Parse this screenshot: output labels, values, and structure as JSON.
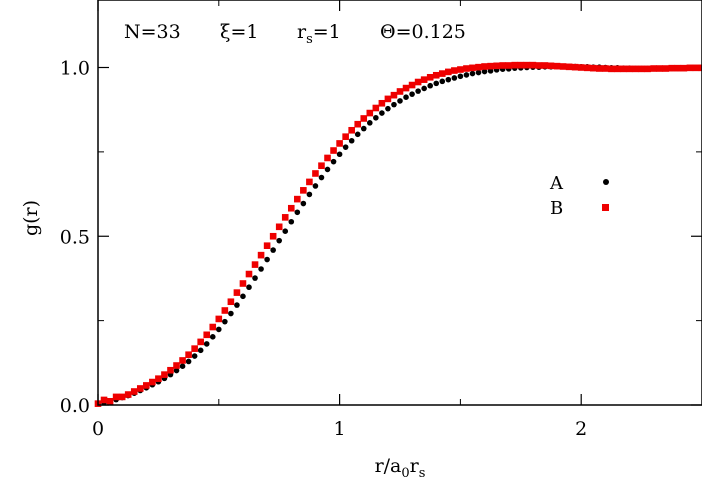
{
  "chart_data": {
    "type": "scatter",
    "annotation": {
      "n": "N=33",
      "xi": "ξ=1",
      "rs_main": "r",
      "rs_sub": "s",
      "rs_tail": "=1",
      "theta": "Θ=0.125"
    },
    "xlabel": {
      "main": "r/a",
      "sub1": "0",
      "mid": "r",
      "sub2": "s"
    },
    "ylabel": "g(r)",
    "xlim": [
      0,
      2.5
    ],
    "ylim": [
      0,
      1.2
    ],
    "xticks": [
      0,
      1,
      2
    ],
    "xtick_labels": [
      "0",
      "1",
      "2"
    ],
    "yticks": [
      0.0,
      0.5,
      1.0
    ],
    "ytick_labels": [
      "0.0",
      "0.5",
      "1.0"
    ],
    "legend_position": "right-middle",
    "series": [
      {
        "name": "A",
        "color": "#000000",
        "marker": "circle",
        "x": [
          0.0,
          0.025,
          0.05,
          0.075,
          0.1,
          0.125,
          0.15,
          0.175,
          0.2,
          0.225,
          0.25,
          0.275,
          0.3,
          0.325,
          0.35,
          0.375,
          0.4,
          0.425,
          0.45,
          0.475,
          0.5,
          0.525,
          0.55,
          0.575,
          0.6,
          0.625,
          0.65,
          0.675,
          0.7,
          0.725,
          0.75,
          0.775,
          0.8,
          0.825,
          0.85,
          0.875,
          0.9,
          0.925,
          0.95,
          0.975,
          1.0,
          1.025,
          1.05,
          1.075,
          1.1,
          1.125,
          1.15,
          1.175,
          1.2,
          1.225,
          1.25,
          1.275,
          1.3,
          1.325,
          1.35,
          1.375,
          1.4,
          1.425,
          1.45,
          1.475,
          1.5,
          1.525,
          1.55,
          1.575,
          1.6,
          1.625,
          1.65,
          1.675,
          1.7,
          1.725,
          1.75,
          1.775,
          1.8,
          1.825,
          1.85,
          1.875,
          1.9,
          1.925,
          1.95,
          1.975,
          2.0,
          2.025,
          2.05,
          2.075,
          2.1,
          2.125,
          2.15,
          2.175,
          2.2,
          2.225,
          2.25,
          2.275,
          2.3,
          2.325,
          2.35,
          2.375,
          2.4,
          2.425,
          2.45,
          2.475,
          2.5
        ],
        "y": [
          0.004,
          0.007,
          0.011,
          0.016,
          0.022,
          0.028,
          0.035,
          0.043,
          0.051,
          0.06,
          0.069,
          0.079,
          0.09,
          0.102,
          0.115,
          0.129,
          0.145,
          0.162,
          0.181,
          0.202,
          0.224,
          0.247,
          0.271,
          0.296,
          0.322,
          0.349,
          0.376,
          0.403,
          0.431,
          0.459,
          0.487,
          0.515,
          0.543,
          0.571,
          0.597,
          0.624,
          0.649,
          0.674,
          0.698,
          0.721,
          0.743,
          0.764,
          0.783,
          0.802,
          0.819,
          0.836,
          0.851,
          0.865,
          0.878,
          0.89,
          0.901,
          0.912,
          0.921,
          0.93,
          0.938,
          0.946,
          0.953,
          0.959,
          0.964,
          0.969,
          0.974,
          0.978,
          0.982,
          0.985,
          0.988,
          0.99,
          0.993,
          0.995,
          0.996,
          0.998,
          0.999,
          1.0,
          1.001,
          1.001,
          1.002,
          1.002,
          1.003,
          1.003,
          1.003,
          1.003,
          1.002,
          1.002,
          1.001,
          1.001,
          1.0,
          0.999,
          0.999,
          0.998,
          0.998,
          0.997,
          0.997,
          0.997,
          0.997,
          0.997,
          0.997,
          0.997,
          0.997,
          0.998,
          0.998,
          0.998,
          0.999
        ]
      },
      {
        "name": "B",
        "color": "#ee0000",
        "marker": "square",
        "x": [
          0.0,
          0.025,
          0.05,
          0.075,
          0.1,
          0.125,
          0.15,
          0.175,
          0.2,
          0.225,
          0.25,
          0.275,
          0.3,
          0.325,
          0.35,
          0.375,
          0.4,
          0.425,
          0.45,
          0.475,
          0.5,
          0.525,
          0.55,
          0.575,
          0.6,
          0.625,
          0.65,
          0.675,
          0.7,
          0.725,
          0.75,
          0.775,
          0.8,
          0.825,
          0.85,
          0.875,
          0.9,
          0.925,
          0.95,
          0.975,
          1.0,
          1.025,
          1.05,
          1.075,
          1.1,
          1.125,
          1.15,
          1.175,
          1.2,
          1.225,
          1.25,
          1.275,
          1.3,
          1.325,
          1.35,
          1.375,
          1.4,
          1.425,
          1.45,
          1.475,
          1.5,
          1.525,
          1.55,
          1.575,
          1.6,
          1.625,
          1.65,
          1.675,
          1.7,
          1.725,
          1.75,
          1.775,
          1.8,
          1.825,
          1.85,
          1.875,
          1.9,
          1.925,
          1.95,
          1.975,
          2.0,
          2.025,
          2.05,
          2.075,
          2.1,
          2.125,
          2.15,
          2.175,
          2.2,
          2.225,
          2.25,
          2.275,
          2.3,
          2.325,
          2.35,
          2.375,
          2.4,
          2.425,
          2.45,
          2.475,
          2.5
        ],
        "y": [
          0.004,
          0.015,
          0.011,
          0.024,
          0.024,
          0.031,
          0.04,
          0.049,
          0.058,
          0.068,
          0.078,
          0.09,
          0.103,
          0.117,
          0.132,
          0.149,
          0.167,
          0.187,
          0.208,
          0.231,
          0.255,
          0.28,
          0.306,
          0.333,
          0.36,
          0.388,
          0.416,
          0.444,
          0.472,
          0.5,
          0.528,
          0.556,
          0.583,
          0.61,
          0.636,
          0.661,
          0.686,
          0.709,
          0.732,
          0.754,
          0.775,
          0.795,
          0.814,
          0.832,
          0.849,
          0.865,
          0.88,
          0.894,
          0.907,
          0.918,
          0.929,
          0.939,
          0.948,
          0.957,
          0.964,
          0.971,
          0.977,
          0.982,
          0.987,
          0.991,
          0.994,
          0.997,
          0.999,
          1.001,
          1.003,
          1.004,
          1.005,
          1.006,
          1.006,
          1.007,
          1.007,
          1.007,
          1.007,
          1.006,
          1.006,
          1.005,
          1.004,
          1.003,
          1.002,
          1.001,
          1.0,
          0.999,
          0.998,
          0.997,
          0.997,
          0.996,
          0.996,
          0.996,
          0.996,
          0.996,
          0.996,
          0.996,
          0.997,
          0.997,
          0.997,
          0.998,
          0.998,
          0.998,
          0.999,
          0.999,
          0.999
        ]
      }
    ]
  }
}
